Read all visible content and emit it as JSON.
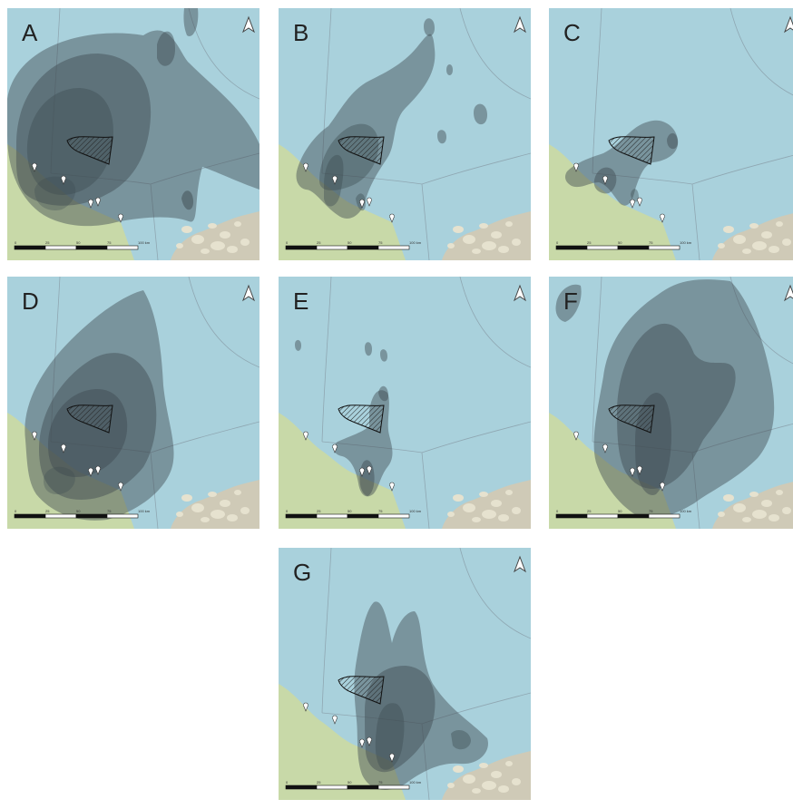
{
  "figure": {
    "panels": [
      {
        "id": "A",
        "label": "A"
      },
      {
        "id": "B",
        "label": "B"
      },
      {
        "id": "C",
        "label": "C"
      },
      {
        "id": "D",
        "label": "D"
      },
      {
        "id": "E",
        "label": "E"
      },
      {
        "id": "F",
        "label": "F"
      },
      {
        "id": "G",
        "label": "G"
      }
    ],
    "scale_bar": {
      "ticks": [
        "0",
        "25",
        "50",
        "75",
        "100 km"
      ]
    },
    "colors": {
      "sea": "#a9d1dc",
      "land": "#c8d9a8",
      "land_dense": "#d6c9b0",
      "density": "#3d4a50",
      "boundary": "#8fa7b2"
    },
    "icons": {
      "north_arrow": "north-arrow-icon",
      "study_area": "hatched-polygon",
      "site_marker": "pin-marker-icon"
    }
  }
}
